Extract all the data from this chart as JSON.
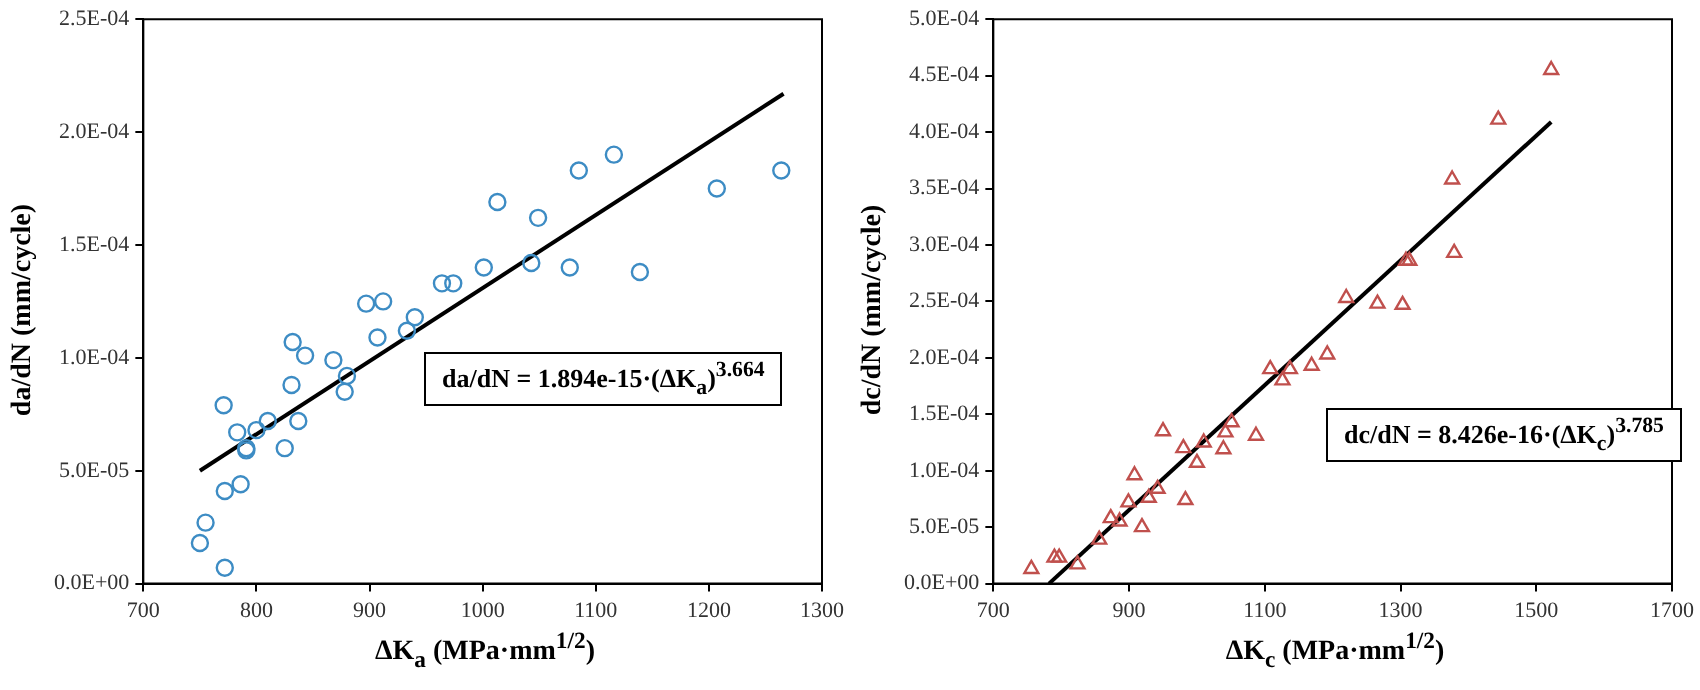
{
  "chart_data": [
    {
      "type": "scatter",
      "xlabel": "ΔK$_{a}$ (MPa·mm$^{1/2}$)",
      "ylabel": "da/dN (mm/cycle)",
      "xlim": [
        700,
        1300
      ],
      "xticks": [
        700,
        800,
        900,
        1000,
        1100,
        1200,
        1300
      ],
      "ylim": [
        0,
        0.00025
      ],
      "yticks": [
        {
          "value": 0,
          "label": "0.0E+00"
        },
        {
          "value": 5e-05,
          "label": "5.0E-05"
        },
        {
          "value": 0.0001,
          "label": "1.0E-04"
        },
        {
          "value": 0.00015,
          "label": "1.5E-04"
        },
        {
          "value": 0.0002,
          "label": "2.0E-04"
        },
        {
          "value": 0.00025,
          "label": "2.5E-04"
        }
      ],
      "grid": false,
      "legend": false,
      "annotations": [
        "da/dN = 1.894e-15·(ΔK$_{a}$)$^{3.664}$"
      ],
      "series": [
        {
          "type": "scatter",
          "marker": "circle",
          "color": "#3d8cc4",
          "x": [
            750,
            755,
            772,
            772,
            771,
            783,
            786,
            791,
            791,
            800,
            810,
            825,
            831,
            832,
            837,
            843,
            868,
            878,
            880,
            897,
            907,
            912,
            933,
            940,
            964,
            974,
            1001,
            1013,
            1043,
            1049,
            1077,
            1085,
            1116,
            1139,
            1207,
            1264
          ],
          "values": [
            1.8e-05,
            2.7e-05,
            7e-06,
            4.1e-05,
            7.9e-05,
            6.7e-05,
            4.4e-05,
            6e-05,
            5.9e-05,
            6.8e-05,
            7.2e-05,
            6e-05,
            8.8e-05,
            0.000107,
            7.2e-05,
            0.000101,
            9.9e-05,
            8.5e-05,
            9.2e-05,
            0.000124,
            0.000109,
            0.000125,
            0.000112,
            0.000118,
            0.000133,
            0.000133,
            0.00014,
            0.000169,
            0.000142,
            0.000162,
            0.00014,
            0.000183,
            0.00019,
            0.000138,
            0.000175,
            0.000183
          ]
        },
        {
          "type": "line",
          "marker": "none",
          "color": "#000000",
          "x": [
            750,
            1266
          ],
          "values": [
            5e-05,
            0.000217
          ]
        }
      ]
    },
    {
      "type": "scatter",
      "xlabel": "ΔK$_{c}$ (MPa·mm$^{1/2}$)",
      "ylabel": "dc/dN (mm/cycle)",
      "xlim": [
        700,
        1700
      ],
      "xticks": [
        700,
        900,
        1100,
        1300,
        1500,
        1700
      ],
      "ylim": [
        0,
        0.0005
      ],
      "yticks": [
        {
          "value": 0,
          "label": "0.0E+00"
        },
        {
          "value": 5e-05,
          "label": "5.0E-05"
        },
        {
          "value": 0.0001,
          "label": "1.0E-04"
        },
        {
          "value": 0.00015,
          "label": "1.5E-04"
        },
        {
          "value": 0.0002,
          "label": "2.0E-04"
        },
        {
          "value": 0.00025,
          "label": "2.5E-04"
        },
        {
          "value": 0.0003,
          "label": "3.0E-04"
        },
        {
          "value": 0.00035,
          "label": "3.5E-04"
        },
        {
          "value": 0.0004,
          "label": "4.0E-04"
        },
        {
          "value": 0.00045,
          "label": "4.5E-04"
        },
        {
          "value": 0.0005,
          "label": "5.0E-04"
        }
      ],
      "grid": false,
      "legend": false,
      "annotations": [
        "dc/dN = 8.426e-16·(ΔK$_{c}$)$^{3.785}$"
      ],
      "series": [
        {
          "type": "scatter",
          "marker": "triangle",
          "color": "#c0504d",
          "x": [
            756,
            790,
            797,
            824,
            856,
            873,
            886,
            899,
            908,
            919,
            929,
            942,
            950,
            980,
            983,
            1000,
            1010,
            1039,
            1042,
            1051,
            1087,
            1108,
            1126,
            1137,
            1169,
            1192,
            1220,
            1266,
            1303,
            1308,
            1313,
            1379,
            1376,
            1444,
            1522
          ],
          "values": [
            1.3e-05,
            2.3e-05,
            2.3e-05,
            1.7e-05,
            3.9e-05,
            5.8e-05,
            5.5e-05,
            7.2e-05,
            9.6e-05,
            5e-05,
            7.6e-05,
            8.4e-05,
            0.000135,
            0.00012,
            7.4e-05,
            0.000107,
            0.000125,
            0.000119,
            0.000134,
            0.000143,
            0.000131,
            0.00019,
            0.00018,
            0.00019,
            0.000193,
            0.000203,
            0.000253,
            0.000248,
            0.000247,
            0.000286,
            0.000286,
            0.000293,
            0.000358,
            0.000411,
            0.000455
          ]
        },
        {
          "type": "line",
          "marker": "none",
          "color": "#000000",
          "x": [
            782,
            1522
          ],
          "values": [
            0,
            0.000409
          ]
        }
      ]
    }
  ]
}
